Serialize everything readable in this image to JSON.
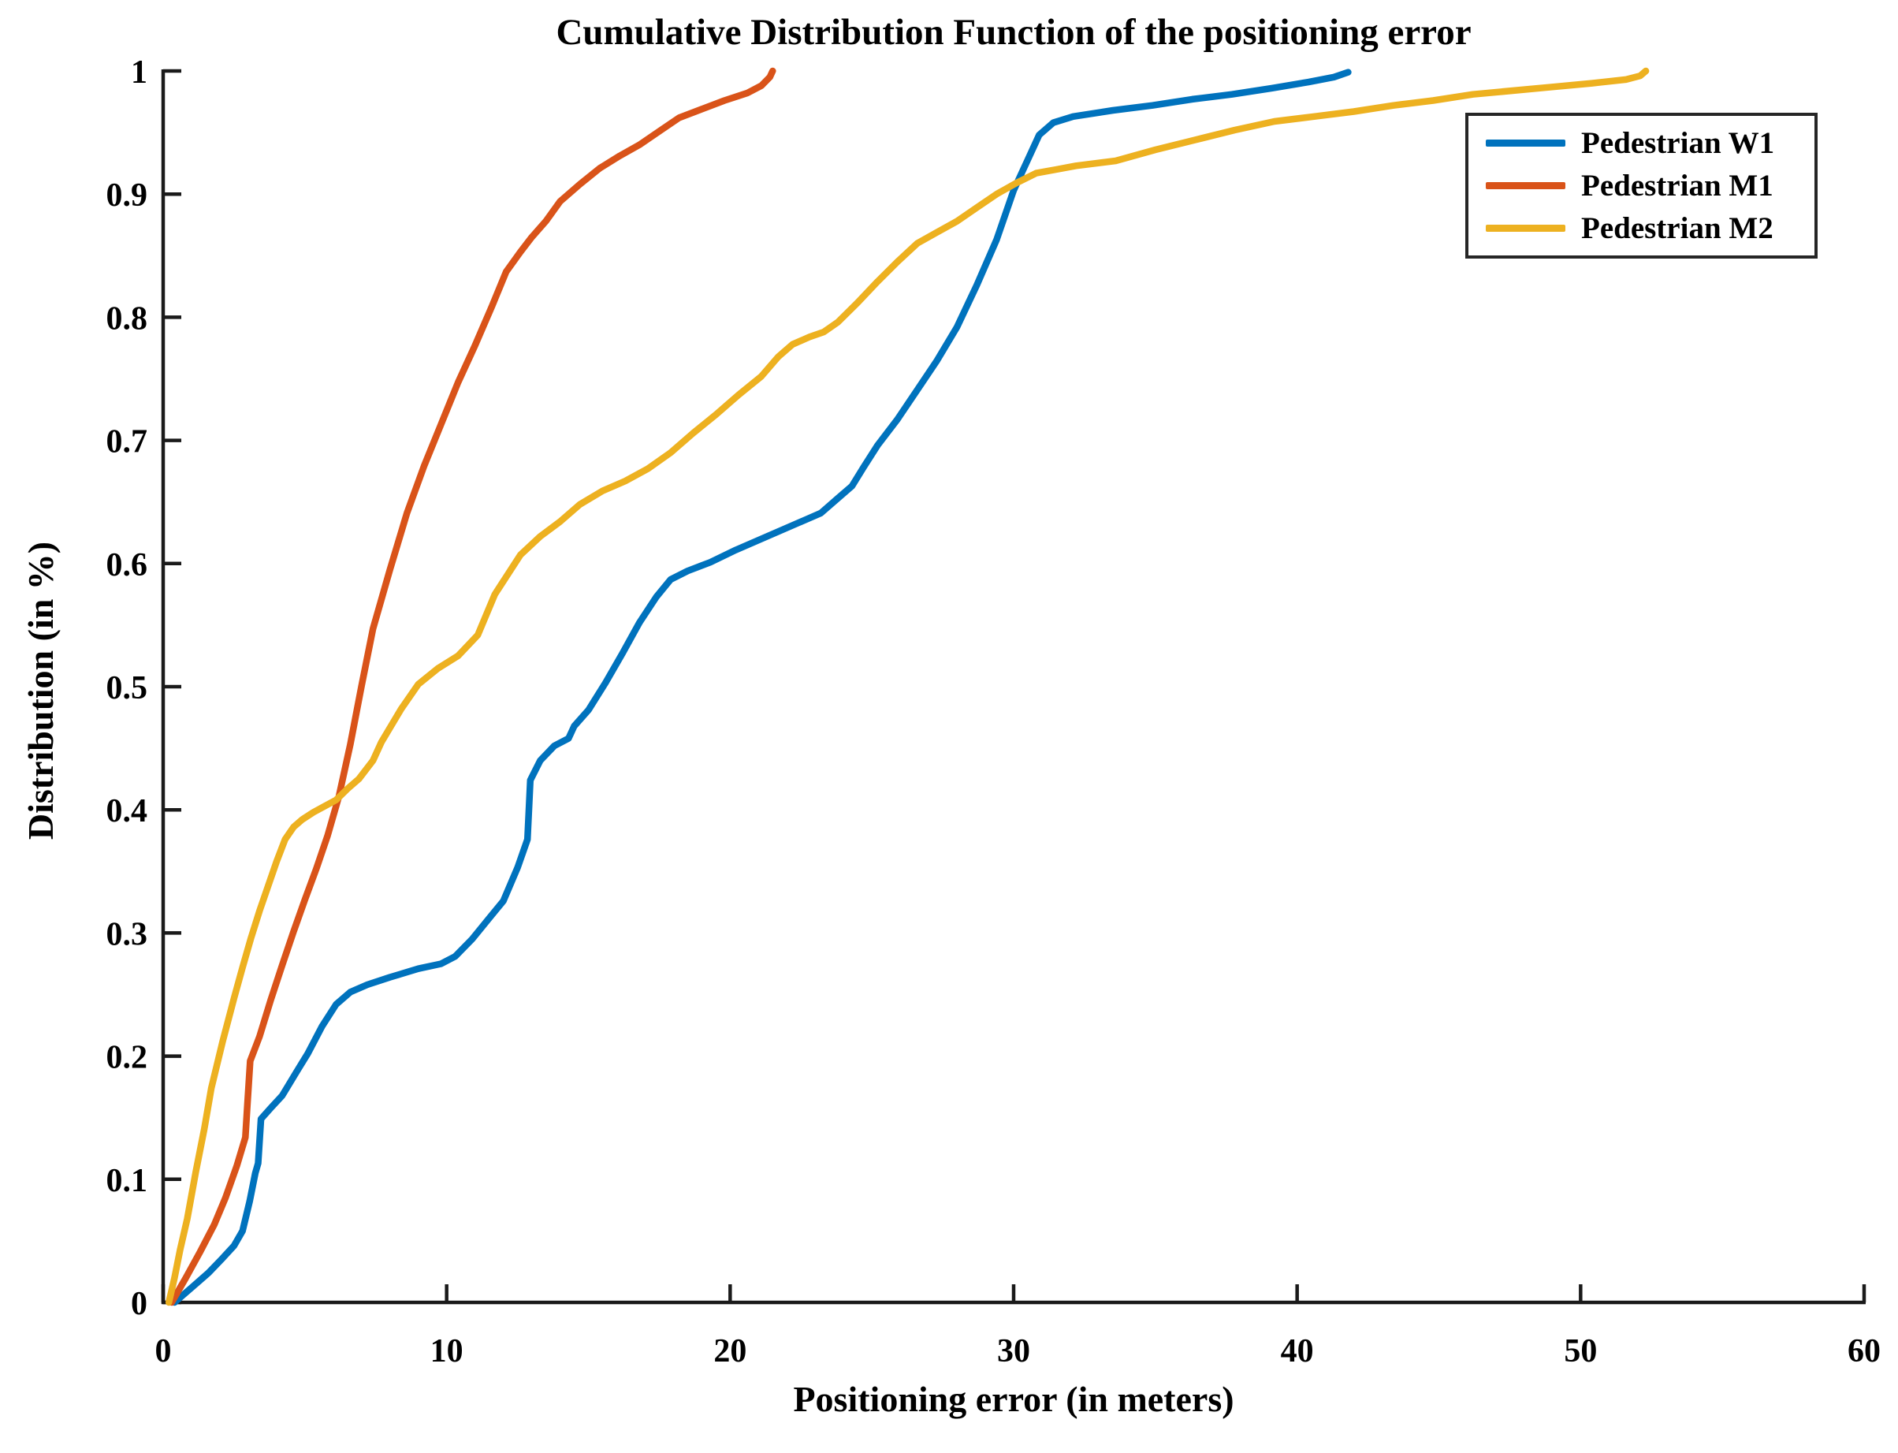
{
  "chart_data": {
    "type": "line",
    "title": "Cumulative Distribution Function of the positioning error",
    "xlabel": "Positioning error (in meters)",
    "ylabel": "Distribution (in %)",
    "xlim": [
      0,
      60
    ],
    "ylim": [
      0,
      1
    ],
    "grid": false,
    "legend_position": "top-right-inside",
    "axis_color": "#1a1a1a",
    "x_ticks": {
      "values": [
        0,
        10,
        20,
        30,
        40,
        50,
        60
      ],
      "labels": [
        "0",
        "10",
        "20",
        "30",
        "40",
        "50",
        "60"
      ]
    },
    "y_ticks": {
      "values": [
        0,
        0.1,
        0.2,
        0.3,
        0.4,
        0.5,
        0.6,
        0.7,
        0.8,
        0.9,
        1.0
      ],
      "labels": [
        "0",
        "0.1",
        "0.2",
        "0.3",
        "0.4",
        "0.5",
        "0.6",
        "0.7",
        "0.8",
        "0.9",
        "1"
      ]
    },
    "series": [
      {
        "name": "Pedestrian W1",
        "color": "#0072BD",
        "points": [
          [
            0.4,
            0
          ],
          [
            1.0,
            0.012
          ],
          [
            1.6,
            0.024
          ],
          [
            2.1,
            0.036
          ],
          [
            2.5,
            0.046
          ],
          [
            2.8,
            0.058
          ],
          [
            3.05,
            0.082
          ],
          [
            3.25,
            0.105
          ],
          [
            3.35,
            0.113
          ],
          [
            3.45,
            0.149
          ],
          [
            3.8,
            0.158
          ],
          [
            4.2,
            0.168
          ],
          [
            4.7,
            0.187
          ],
          [
            5.1,
            0.202
          ],
          [
            5.6,
            0.224
          ],
          [
            6.1,
            0.242
          ],
          [
            6.6,
            0.252
          ],
          [
            7.2,
            0.258
          ],
          [
            8.0,
            0.264
          ],
          [
            9.0,
            0.271
          ],
          [
            9.8,
            0.275
          ],
          [
            10.3,
            0.281
          ],
          [
            10.9,
            0.295
          ],
          [
            11.5,
            0.312
          ],
          [
            12.0,
            0.326
          ],
          [
            12.5,
            0.353
          ],
          [
            12.85,
            0.376
          ],
          [
            12.95,
            0.424
          ],
          [
            13.3,
            0.44
          ],
          [
            13.8,
            0.452
          ],
          [
            14.3,
            0.458
          ],
          [
            14.5,
            0.468
          ],
          [
            15.0,
            0.481
          ],
          [
            15.6,
            0.503
          ],
          [
            16.2,
            0.527
          ],
          [
            16.8,
            0.552
          ],
          [
            17.4,
            0.573
          ],
          [
            17.9,
            0.587
          ],
          [
            18.5,
            0.594
          ],
          [
            19.3,
            0.601
          ],
          [
            20.2,
            0.611
          ],
          [
            21.2,
            0.621
          ],
          [
            22.2,
            0.631
          ],
          [
            23.2,
            0.641
          ],
          [
            23.8,
            0.653
          ],
          [
            24.3,
            0.663
          ],
          [
            24.7,
            0.678
          ],
          [
            25.2,
            0.696
          ],
          [
            25.9,
            0.717
          ],
          [
            26.6,
            0.741
          ],
          [
            27.3,
            0.765
          ],
          [
            28.0,
            0.792
          ],
          [
            28.7,
            0.826
          ],
          [
            29.4,
            0.863
          ],
          [
            30.0,
            0.903
          ],
          [
            30.5,
            0.928
          ],
          [
            30.9,
            0.948
          ],
          [
            31.4,
            0.958
          ],
          [
            32.1,
            0.963
          ],
          [
            33.5,
            0.968
          ],
          [
            34.9,
            0.972
          ],
          [
            36.3,
            0.977
          ],
          [
            37.7,
            0.981
          ],
          [
            39.1,
            0.986
          ],
          [
            40.4,
            0.991
          ],
          [
            41.3,
            0.995
          ],
          [
            41.8,
            0.999
          ]
        ]
      },
      {
        "name": "Pedestrian M1",
        "color": "#D95319",
        "points": [
          [
            0.3,
            0
          ],
          [
            0.8,
            0.02
          ],
          [
            1.3,
            0.041
          ],
          [
            1.8,
            0.063
          ],
          [
            2.2,
            0.085
          ],
          [
            2.6,
            0.111
          ],
          [
            2.9,
            0.134
          ],
          [
            2.97,
            0.16
          ],
          [
            3.07,
            0.196
          ],
          [
            3.4,
            0.216
          ],
          [
            3.8,
            0.246
          ],
          [
            4.2,
            0.274
          ],
          [
            4.6,
            0.301
          ],
          [
            5.0,
            0.327
          ],
          [
            5.4,
            0.352
          ],
          [
            5.8,
            0.379
          ],
          [
            6.2,
            0.411
          ],
          [
            6.6,
            0.453
          ],
          [
            7.0,
            0.501
          ],
          [
            7.4,
            0.547
          ],
          [
            8.0,
            0.595
          ],
          [
            8.6,
            0.641
          ],
          [
            9.2,
            0.679
          ],
          [
            9.8,
            0.713
          ],
          [
            10.4,
            0.747
          ],
          [
            11.0,
            0.777
          ],
          [
            11.6,
            0.809
          ],
          [
            12.1,
            0.837
          ],
          [
            12.6,
            0.853
          ],
          [
            13.0,
            0.865
          ],
          [
            13.5,
            0.878
          ],
          [
            14.0,
            0.894
          ],
          [
            14.7,
            0.908
          ],
          [
            15.4,
            0.921
          ],
          [
            16.1,
            0.931
          ],
          [
            16.8,
            0.94
          ],
          [
            17.5,
            0.951
          ],
          [
            18.2,
            0.962
          ],
          [
            19.0,
            0.969
          ],
          [
            19.8,
            0.976
          ],
          [
            20.6,
            0.982
          ],
          [
            21.1,
            0.988
          ],
          [
            21.4,
            0.995
          ],
          [
            21.5,
            1.0
          ]
        ]
      },
      {
        "name": "Pedestrian M2",
        "color": "#EDB120",
        "points": [
          [
            0.2,
            0
          ],
          [
            0.4,
            0.02
          ],
          [
            0.6,
            0.043
          ],
          [
            0.85,
            0.068
          ],
          [
            1.15,
            0.106
          ],
          [
            1.45,
            0.141
          ],
          [
            1.7,
            0.174
          ],
          [
            2.1,
            0.212
          ],
          [
            2.5,
            0.247
          ],
          [
            2.8,
            0.272
          ],
          [
            3.1,
            0.296
          ],
          [
            3.4,
            0.318
          ],
          [
            3.7,
            0.338
          ],
          [
            4.0,
            0.358
          ],
          [
            4.3,
            0.376
          ],
          [
            4.6,
            0.386
          ],
          [
            4.9,
            0.392
          ],
          [
            5.3,
            0.398
          ],
          [
            5.7,
            0.403
          ],
          [
            6.1,
            0.408
          ],
          [
            6.5,
            0.417
          ],
          [
            6.9,
            0.425
          ],
          [
            7.4,
            0.44
          ],
          [
            7.7,
            0.455
          ],
          [
            8.4,
            0.482
          ],
          [
            9.0,
            0.502
          ],
          [
            9.7,
            0.515
          ],
          [
            10.4,
            0.525
          ],
          [
            11.1,
            0.542
          ],
          [
            11.7,
            0.575
          ],
          [
            12.6,
            0.607
          ],
          [
            13.3,
            0.622
          ],
          [
            14.0,
            0.634
          ],
          [
            14.7,
            0.648
          ],
          [
            15.5,
            0.659
          ],
          [
            16.3,
            0.667
          ],
          [
            17.1,
            0.677
          ],
          [
            17.9,
            0.69
          ],
          [
            18.7,
            0.706
          ],
          [
            19.5,
            0.721
          ],
          [
            20.3,
            0.737
          ],
          [
            21.1,
            0.752
          ],
          [
            21.7,
            0.768
          ],
          [
            22.2,
            0.778
          ],
          [
            22.8,
            0.784
          ],
          [
            23.3,
            0.788
          ],
          [
            23.8,
            0.796
          ],
          [
            24.5,
            0.812
          ],
          [
            25.2,
            0.829
          ],
          [
            25.9,
            0.845
          ],
          [
            26.6,
            0.86
          ],
          [
            27.3,
            0.869
          ],
          [
            28.0,
            0.878
          ],
          [
            28.7,
            0.889
          ],
          [
            29.4,
            0.9
          ],
          [
            30.1,
            0.909
          ],
          [
            30.8,
            0.917
          ],
          [
            31.5,
            0.92
          ],
          [
            32.2,
            0.923
          ],
          [
            33.6,
            0.927
          ],
          [
            35.0,
            0.936
          ],
          [
            36.4,
            0.944
          ],
          [
            37.8,
            0.952
          ],
          [
            39.2,
            0.959
          ],
          [
            40.6,
            0.963
          ],
          [
            42.0,
            0.967
          ],
          [
            43.4,
            0.972
          ],
          [
            44.8,
            0.976
          ],
          [
            46.2,
            0.981
          ],
          [
            47.6,
            0.984
          ],
          [
            49.0,
            0.987
          ],
          [
            50.4,
            0.99
          ],
          [
            51.6,
            0.993
          ],
          [
            52.1,
            0.996
          ],
          [
            52.3,
            1.0
          ]
        ]
      }
    ]
  }
}
